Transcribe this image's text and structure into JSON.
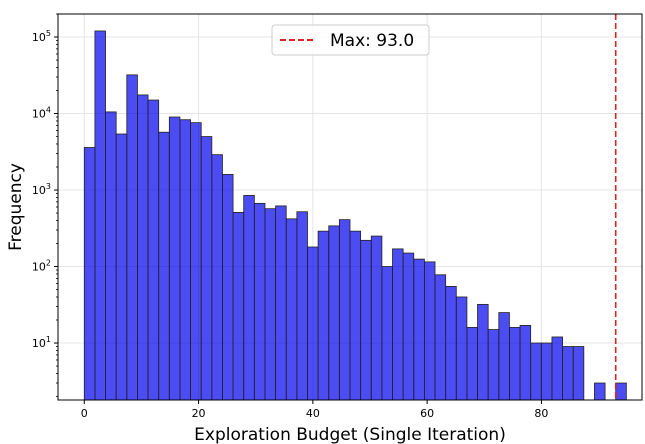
{
  "chart_data": {
    "type": "bar",
    "xlabel": "Exploration Budget (Single Iteration)",
    "ylabel": "Frequency",
    "yscale": "log",
    "xlim": [
      -4.6,
      97.6
    ],
    "ylim": [
      1.8,
      200000
    ],
    "x_ticks": [
      0,
      20,
      40,
      60,
      80
    ],
    "x_tick_labels": [
      "0",
      "20",
      "40",
      "60",
      "80"
    ],
    "y_ticks": [
      10,
      100,
      1000,
      10000,
      100000
    ],
    "y_tick_labels": [
      [
        "10",
        "1"
      ],
      [
        "10",
        "2"
      ],
      [
        "10",
        "3"
      ],
      [
        "10",
        "4"
      ],
      [
        "10",
        "5"
      ]
    ],
    "grid": true,
    "bar_color": "#0000ee",
    "bar_edge_color": "#222222",
    "bin_width": 1.86,
    "bin_start": 0,
    "values": [
      3600,
      120000,
      10500,
      5400,
      32000,
      17500,
      15000,
      5700,
      9000,
      8300,
      7600,
      5000,
      2900,
      1600,
      510,
      850,
      670,
      570,
      620,
      420,
      520,
      180,
      290,
      340,
      410,
      290,
      220,
      250,
      100,
      170,
      150,
      125,
      115,
      78,
      55,
      40,
      16,
      32,
      15,
      25,
      16,
      17,
      10,
      10,
      12,
      9,
      9,
      0,
      3,
      0,
      3
    ],
    "max_line": {
      "x": 93.0,
      "color": "#dd2222",
      "label": "Max: 93.0"
    },
    "legend_position": "top-center"
  }
}
